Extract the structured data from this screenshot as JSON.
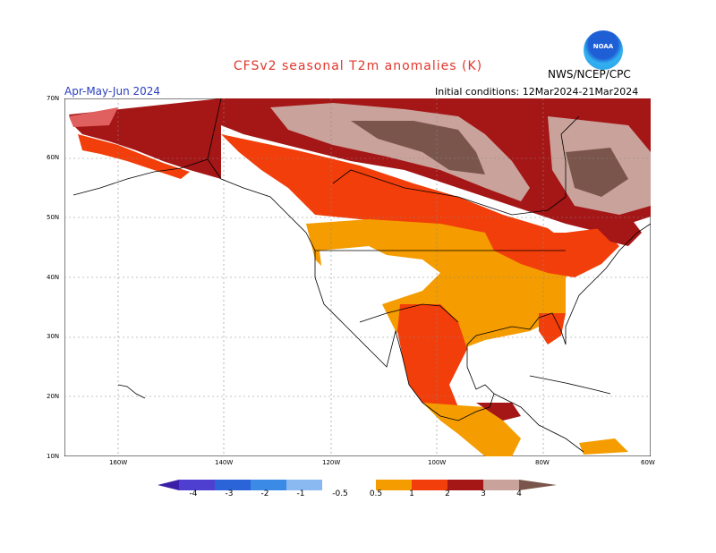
{
  "title": "CFSv2 seasonal T2m anomalies (K)",
  "agency": "NWS/NCEP/CPC",
  "logo_text": "NOAA",
  "season": "Apr-May-Jun 2024",
  "initial_conditions": "Initial conditions: 12Mar2024-21Mar2024",
  "lat_labels": [
    "70N",
    "60N",
    "50N",
    "40N",
    "30N",
    "20N",
    "10N"
  ],
  "lon_labels": [
    "160W",
    "140W",
    "120W",
    "100W",
    "80W",
    "60W"
  ],
  "colorbar": {
    "labels": [
      "-4",
      "-3",
      "-2",
      "-1",
      "-0.5",
      "0.5",
      "1",
      "2",
      "3",
      "4"
    ],
    "colors": [
      "#3a20a8",
      "#4f3fd1",
      "#2b63d8",
      "#3a8ae6",
      "#8ab9f2",
      "#ffffff",
      "#f49c00",
      "#f23e0a",
      "#a51616",
      "#c9a39b",
      "#7a554b"
    ]
  },
  "colors": {
    "title": "#e0362b",
    "season": "#2a3fbf"
  }
}
